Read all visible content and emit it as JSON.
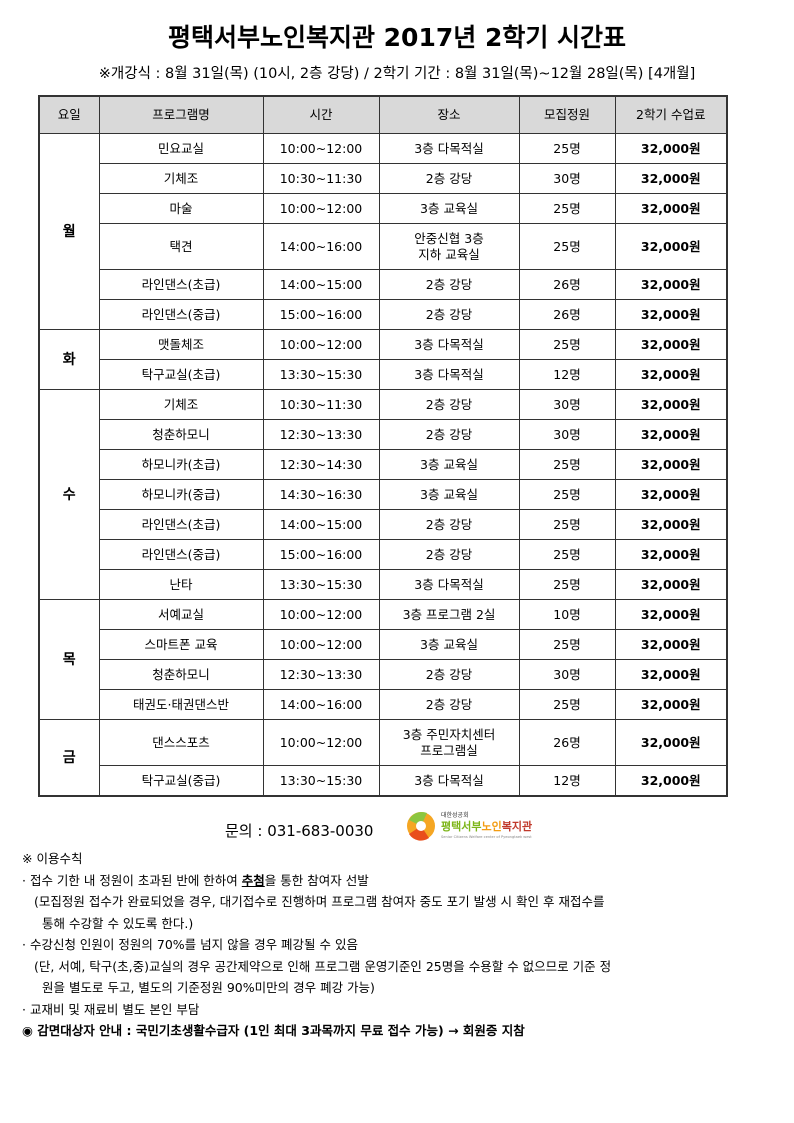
{
  "title": "평택서부노인복지관 2017년 2학기 시간표",
  "subtitle": "※개강식 : 8월 31일(목) (10시, 2층 강당) / 2학기 기간 : 8월 31일(목)~12월 28일(목) [4개월]",
  "table": {
    "headers": [
      "요일",
      "프로그램명",
      "시간",
      "장소",
      "모집정원",
      "2학기 수업료"
    ],
    "days": [
      {
        "day": "월",
        "rows": [
          {
            "program": "민요교실",
            "time": "10:00~12:00",
            "place": "3층 다목적실",
            "capacity": "25명",
            "fee": "32,000원"
          },
          {
            "program": "기체조",
            "time": "10:30~11:30",
            "place": "2층 강당",
            "capacity": "30명",
            "fee": "32,000원"
          },
          {
            "program": "마술",
            "time": "10:00~12:00",
            "place": "3층 교육실",
            "capacity": "25명",
            "fee": "32,000원"
          },
          {
            "program": "택견",
            "time": "14:00~16:00",
            "place": "안중신협 3층\n지하 교육실",
            "capacity": "25명",
            "fee": "32,000원"
          },
          {
            "program": "라인댄스(초급)",
            "time": "14:00~15:00",
            "place": "2층 강당",
            "capacity": "26명",
            "fee": "32,000원"
          },
          {
            "program": "라인댄스(중급)",
            "time": "15:00~16:00",
            "place": "2층 강당",
            "capacity": "26명",
            "fee": "32,000원"
          }
        ]
      },
      {
        "day": "화",
        "rows": [
          {
            "program": "맷돌체조",
            "time": "10:00~12:00",
            "place": "3층 다목적실",
            "capacity": "25명",
            "fee": "32,000원"
          },
          {
            "program": "탁구교실(초급)",
            "time": "13:30~15:30",
            "place": "3층 다목적실",
            "capacity": "12명",
            "fee": "32,000원"
          }
        ]
      },
      {
        "day": "수",
        "rows": [
          {
            "program": "기체조",
            "time": "10:30~11:30",
            "place": "2층 강당",
            "capacity": "30명",
            "fee": "32,000원"
          },
          {
            "program": "청춘하모니",
            "time": "12:30~13:30",
            "place": "2층 강당",
            "capacity": "30명",
            "fee": "32,000원"
          },
          {
            "program": "하모니카(초급)",
            "time": "12:30~14:30",
            "place": "3층 교육실",
            "capacity": "25명",
            "fee": "32,000원"
          },
          {
            "program": "하모니카(중급)",
            "time": "14:30~16:30",
            "place": "3층 교육실",
            "capacity": "25명",
            "fee": "32,000원"
          },
          {
            "program": "라인댄스(초급)",
            "time": "14:00~15:00",
            "place": "2층 강당",
            "capacity": "25명",
            "fee": "32,000원"
          },
          {
            "program": "라인댄스(중급)",
            "time": "15:00~16:00",
            "place": "2층 강당",
            "capacity": "25명",
            "fee": "32,000원"
          },
          {
            "program": "난타",
            "time": "13:30~15:30",
            "place": "3층 다목적실",
            "capacity": "25명",
            "fee": "32,000원"
          }
        ]
      },
      {
        "day": "목",
        "rows": [
          {
            "program": "서예교실",
            "time": "10:00~12:00",
            "place": "3층 프로그램 2실",
            "capacity": "10명",
            "fee": "32,000원"
          },
          {
            "program": "스마트폰 교육",
            "time": "10:00~12:00",
            "place": "3층 교육실",
            "capacity": "25명",
            "fee": "32,000원"
          },
          {
            "program": "청춘하모니",
            "time": "12:30~13:30",
            "place": "2층 강당",
            "capacity": "30명",
            "fee": "32,000원"
          },
          {
            "program": "태권도·태권댄스반",
            "time": "14:00~16:00",
            "place": "2층 강당",
            "capacity": "25명",
            "fee": "32,000원"
          }
        ]
      },
      {
        "day": "금",
        "rows": [
          {
            "program": "댄스스포츠",
            "time": "10:00~12:00",
            "place": "3층 주민자치센터\n프로그램실",
            "capacity": "26명",
            "fee": "32,000원"
          },
          {
            "program": "탁구교실(중급)",
            "time": "13:30~15:30",
            "place": "3층 다목적실",
            "capacity": "12명",
            "fee": "32,000원"
          }
        ]
      }
    ]
  },
  "contact": "문의 : 031-683-0030",
  "logo": {
    "top_text": "대한성공회",
    "name": "평택서부노인복지관",
    "english": "Senior Citizens Welfare center of Pyeongtaek west"
  },
  "notes": {
    "heading": "※ 이용수칙",
    "item1_pre": "· 접수 기한 내 정원이 초과된 반에 한하여 ",
    "item1_em": "추첨",
    "item1_post": "을 통한 참여자 선발",
    "item1_sub1": "(모집정원 접수가 완료되었을 경우, 대기접수로 진행하며 프로그램 참여자 중도 포기 발생 시 확인 후 재접수를",
    "item1_sub2": "통해 수강할 수 있도록 한다.)",
    "item2": "· 수강신청 인원이 정원의 70%를 넘지 않을 경우 폐강될 수 있음",
    "item2_sub1": "(단, 서예, 탁구(초,중)교실의 경우 공간제약으로 인해 프로그램 운영기준인 25명을 수용할 수 없으므로 기준 정",
    "item2_sub2": "원을 별도로 두고, 별도의 기준정원 90%미만의 경우 폐강 가능)",
    "item3": "· 교재비 및 재료비 별도 본인 부담",
    "exemption": "◉ 감면대상자 안내 : 국민기초생활수급자 (1인 최대 3과목까지 무료 접수 가능) → 회원증 지참"
  }
}
